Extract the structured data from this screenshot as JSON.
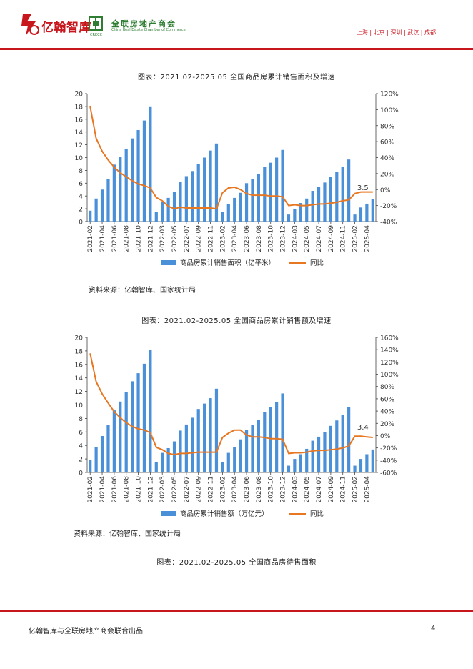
{
  "header": {
    "brand_name": "亿翰智库",
    "partner_name_cn": "全联房地产商会",
    "partner_name_en": "China Real Estate Chamber of Commerce",
    "partner_abbr": "CRECC",
    "cities": "上海 | 北京 | 深圳 | 武汉 | 成都",
    "brand_color": "#c8161d",
    "partner_color": "#2e7d32"
  },
  "charts": {
    "area": {
      "title": "图表：2021.02-2025.05 全国商品房累计销售面积及增速",
      "source": "资料来源：亿翰智库、国家统计局",
      "legend_bar": "商品房累计销售面积（亿平米）",
      "legend_line": "同比",
      "callout": "3.5",
      "bar_color": "#4a90d9",
      "line_color": "#e87722"
    },
    "sales": {
      "title": "图表：2021.02-2025.05 全国商品房累计销售额及增速",
      "source": "资料来源：亿翰智库、国家统计局",
      "legend_bar": "商品房累计销售额（万亿元）",
      "legend_line": "同比",
      "callout": "3.4",
      "bar_color": "#4a90d9",
      "line_color": "#e87722"
    },
    "inventory": {
      "title": "图表：2021.02-2025.05 全国商品房待售面积"
    }
  },
  "chart_data": [
    {
      "type": "bar",
      "title": "图表：2021.02-2025.05 全国商品房累计销售面积及增速",
      "categories": [
        "2021-02",
        "2021-03",
        "2021-04",
        "2021-05",
        "2021-06",
        "2021-07",
        "2021-08",
        "2021-09",
        "2021-10",
        "2021-11",
        "2021-12",
        "2022-02",
        "2022-03",
        "2022-04",
        "2022-05",
        "2022-06",
        "2022-07",
        "2022-08",
        "2022-09",
        "2022-10",
        "2022-11",
        "2022-12",
        "2023-02",
        "2023-03",
        "2023-04",
        "2023-05",
        "2023-06",
        "2023-07",
        "2023-08",
        "2023-09",
        "2023-10",
        "2023-11",
        "2023-12",
        "2024-02",
        "2024-03",
        "2024-04",
        "2024-05",
        "2024-06",
        "2024-07",
        "2024-08",
        "2024-09",
        "2024-10",
        "2024-11",
        "2024-12",
        "2025-02",
        "2025-03",
        "2025-04",
        "2025-05"
      ],
      "x_tick_labels": [
        "2021-02",
        "2021-04",
        "2021-06",
        "2021-08",
        "2021-10",
        "2021-12",
        "2022-03",
        "2022-05",
        "2022-07",
        "2022-09",
        "2022-11",
        "2023-02",
        "2023-04",
        "2023-06",
        "2023-08",
        "2023-10",
        "2023-12",
        "2024-03",
        "2024-05",
        "2024-07",
        "2024-09",
        "2024-11",
        "2025-02",
        "2025-04"
      ],
      "series": [
        {
          "name": "商品房累计销售面积（亿平米）",
          "type": "bar",
          "axis": "left",
          "values": [
            1.7,
            3.6,
            5.0,
            6.6,
            8.9,
            10.1,
            11.4,
            13.0,
            14.3,
            15.8,
            17.9,
            1.5,
            3.1,
            3.7,
            4.6,
            6.2,
            7.1,
            7.9,
            9.0,
            10.0,
            11.1,
            12.2,
            1.5,
            2.7,
            3.7,
            4.5,
            6.0,
            6.7,
            7.4,
            8.5,
            9.2,
            10.0,
            11.2,
            1.1,
            2.0,
            2.9,
            3.6,
            4.8,
            5.4,
            6.1,
            7.0,
            7.8,
            8.6,
            9.7,
            1.1,
            2.2,
            2.8,
            3.5
          ]
        },
        {
          "name": "同比",
          "type": "line",
          "axis": "right",
          "values": [
            104,
            64,
            48,
            37,
            28,
            21,
            16,
            11,
            7,
            5,
            2,
            -10,
            -14,
            -21,
            -24,
            -22,
            -23,
            -23,
            -23,
            -23,
            -23,
            -24,
            -4,
            2,
            3,
            0,
            -5,
            -7,
            -7,
            -7,
            -8,
            -8,
            -9,
            -20,
            -19,
            -20,
            -20,
            -19,
            -18,
            -18,
            -17,
            -16,
            -14,
            -13,
            -5,
            -3,
            -3,
            -3
          ]
        }
      ],
      "ylim_left": [
        0,
        20
      ],
      "yticks_left": [
        0,
        2,
        4,
        6,
        8,
        10,
        12,
        14,
        16,
        18,
        20
      ],
      "ylim_right": [
        -40,
        120
      ],
      "yticks_right": [
        "-40%",
        "-20%",
        "0%",
        "20%",
        "40%",
        "60%",
        "80%",
        "100%",
        "120%"
      ],
      "legend": "bottom",
      "annotation": "3.5"
    },
    {
      "type": "bar",
      "title": "图表：2021.02-2025.05 全国商品房累计销售额及增速",
      "categories": [
        "2021-02",
        "2021-03",
        "2021-04",
        "2021-05",
        "2021-06",
        "2021-07",
        "2021-08",
        "2021-09",
        "2021-10",
        "2021-11",
        "2021-12",
        "2022-02",
        "2022-03",
        "2022-04",
        "2022-05",
        "2022-06",
        "2022-07",
        "2022-08",
        "2022-09",
        "2022-10",
        "2022-11",
        "2022-12",
        "2023-02",
        "2023-03",
        "2023-04",
        "2023-05",
        "2023-06",
        "2023-07",
        "2023-08",
        "2023-09",
        "2023-10",
        "2023-11",
        "2023-12",
        "2024-02",
        "2024-03",
        "2024-04",
        "2024-05",
        "2024-06",
        "2024-07",
        "2024-08",
        "2024-09",
        "2024-10",
        "2024-11",
        "2024-12",
        "2025-02",
        "2025-03",
        "2025-04",
        "2025-05"
      ],
      "x_tick_labels": [
        "2021-02",
        "2021-04",
        "2021-06",
        "2021-08",
        "2021-10",
        "2021-12",
        "2022-03",
        "2022-05",
        "2022-07",
        "2022-09",
        "2022-11",
        "2023-02",
        "2023-04",
        "2023-06",
        "2023-08",
        "2023-10",
        "2023-12",
        "2024-03",
        "2024-05",
        "2024-07",
        "2024-09",
        "2024-11",
        "2025-02",
        "2025-04"
      ],
      "series": [
        {
          "name": "商品房累计销售额（万亿元）",
          "type": "bar",
          "axis": "left",
          "values": [
            1.9,
            3.8,
            5.4,
            7.0,
            9.2,
            10.5,
            11.9,
            13.5,
            14.7,
            16.1,
            18.2,
            1.5,
            2.9,
            3.6,
            4.6,
            6.2,
            7.1,
            8.1,
            9.4,
            10.2,
            11.0,
            12.4,
            1.5,
            2.9,
            3.8,
            4.9,
            6.3,
            7.0,
            7.8,
            8.9,
            9.7,
            10.4,
            11.7,
            1.0,
            2.0,
            2.7,
            3.5,
            4.7,
            5.3,
            6.0,
            6.9,
            7.7,
            8.5,
            9.7,
            1.0,
            2.0,
            2.7,
            3.4
          ]
        },
        {
          "name": "同比",
          "type": "line",
          "axis": "right",
          "values": [
            134,
            88,
            68,
            53,
            39,
            29,
            21,
            15,
            11,
            9,
            5,
            -19,
            -23,
            -29,
            -31,
            -29,
            -29,
            -28,
            -27,
            -27,
            -27,
            -27,
            -3,
            4,
            9,
            9,
            1,
            -2,
            -2,
            -3,
            -5,
            -5,
            -6,
            -29,
            -28,
            -28,
            -27,
            -25,
            -24,
            -24,
            -23,
            -22,
            -20,
            -17,
            -1,
            -1,
            -2,
            -3
          ]
        }
      ],
      "ylim_left": [
        0,
        20
      ],
      "yticks_left": [
        0,
        2,
        4,
        6,
        8,
        10,
        12,
        14,
        16,
        18,
        20
      ],
      "ylim_right": [
        -60,
        160
      ],
      "yticks_right": [
        "-60%",
        "-40%",
        "-20%",
        "0%",
        "20%",
        "40%",
        "60%",
        "80%",
        "100%",
        "120%",
        "140%",
        "160%"
      ],
      "legend": "bottom",
      "annotation": "3.4"
    }
  ],
  "footer": {
    "text": "亿翰智库与全联房地产商会联合出品",
    "page_number": "4"
  }
}
